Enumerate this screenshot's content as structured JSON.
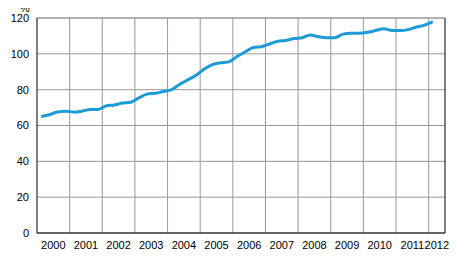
{
  "chart_data": {
    "type": "line",
    "ylabel": "%",
    "x": [
      2000.125,
      2000.375,
      2000.625,
      2000.875,
      2001.125,
      2001.375,
      2001.625,
      2001.875,
      2002.125,
      2002.375,
      2002.625,
      2002.875,
      2003.125,
      2003.375,
      2003.625,
      2003.875,
      2004.125,
      2004.375,
      2004.625,
      2004.875,
      2005.125,
      2005.375,
      2005.625,
      2005.875,
      2006.125,
      2006.375,
      2006.625,
      2006.875,
      2007.125,
      2007.375,
      2007.625,
      2007.875,
      2008.125,
      2008.375,
      2008.625,
      2008.875,
      2009.125,
      2009.375,
      2009.625,
      2009.875,
      2010.125,
      2010.375,
      2010.625,
      2010.875,
      2011.125,
      2011.375,
      2011.625,
      2011.875,
      2012.125
    ],
    "values": [
      65,
      66,
      67.5,
      68,
      67.5,
      68,
      69,
      69,
      71,
      71.5,
      72.5,
      73,
      75.5,
      77.5,
      78,
      79,
      80,
      83,
      85.5,
      88,
      91.5,
      94,
      95,
      95.5,
      98.5,
      101,
      103.5,
      104,
      105.5,
      107,
      107.5,
      108.5,
      109,
      110.5,
      109.5,
      109,
      109,
      111,
      111.5,
      111.5,
      112,
      113,
      114,
      113,
      113,
      113.5,
      115,
      116,
      118
    ],
    "color": "#1c9bd8",
    "xlim": [
      2000,
      2012.5
    ],
    "xticks": [
      {
        "value": 2000.5,
        "label": "2000"
      },
      {
        "value": 2001.5,
        "label": "2001"
      },
      {
        "value": 2002.5,
        "label": "2002"
      },
      {
        "value": 2003.5,
        "label": "2003"
      },
      {
        "value": 2004.5,
        "label": "2004"
      },
      {
        "value": 2005.5,
        "label": "2005"
      },
      {
        "value": 2006.5,
        "label": "2006"
      },
      {
        "value": 2007.5,
        "label": "2007"
      },
      {
        "value": 2008.5,
        "label": "2008"
      },
      {
        "value": 2009.5,
        "label": "2009"
      },
      {
        "value": 2010.5,
        "label": "2010"
      },
      {
        "value": 2011.5,
        "label": "2011"
      },
      {
        "value": 2012.25,
        "label": "2012"
      }
    ],
    "ylim": [
      0,
      120
    ],
    "yticks": [
      0,
      20,
      40,
      60,
      80,
      100,
      120
    ],
    "grid": true
  }
}
